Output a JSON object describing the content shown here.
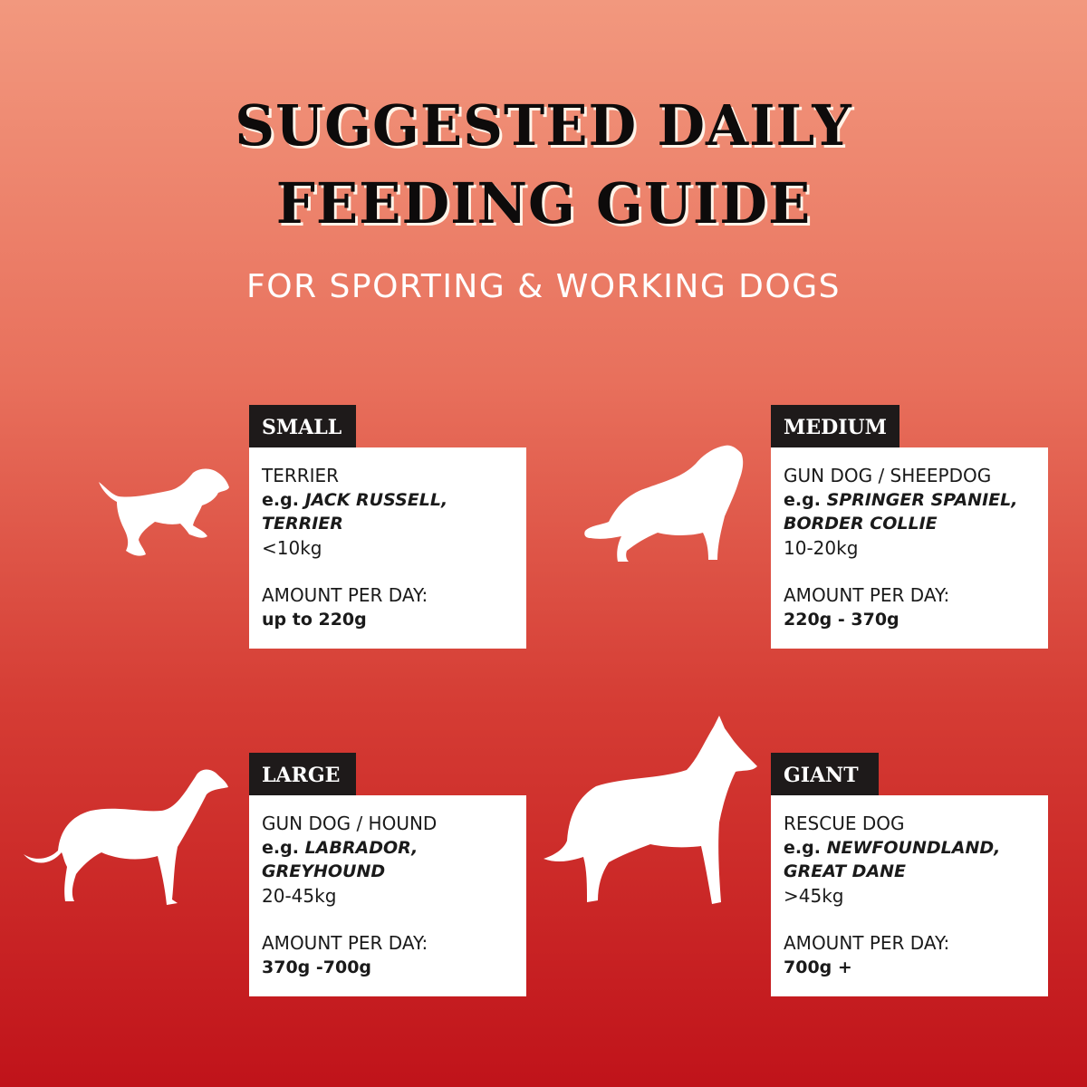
{
  "title_line1": "SUGGESTED DAILY",
  "title_line2": "FEEDING GUIDE",
  "subtitle": "FOR SPORTING & WORKING DOGS",
  "cards": [
    {
      "size": "SMALL",
      "type": "TERRIER",
      "eg_prefix": "e.g.",
      "examples": "JACK RUSSELL, TERRIER",
      "weight": "<10kg",
      "amount_label": "AMOUNT PER DAY:",
      "amount": "up to 220g",
      "icon": "small-running-dog-icon"
    },
    {
      "size": "MEDIUM",
      "type": "GUN DOG / SHEEPDOG",
      "eg_prefix": "e.g.",
      "examples": "SPRINGER SPANIEL, BORDER COLLIE",
      "weight": "10-20kg",
      "amount_label": "AMOUNT PER DAY:",
      "amount": "220g - 370g",
      "icon": "collie-dog-icon"
    },
    {
      "size": "LARGE",
      "type": "GUN DOG / HOUND",
      "eg_prefix": "e.g.",
      "examples": "LABRADOR, GREYHOUND",
      "weight": "20-45kg",
      "amount_label": "AMOUNT PER DAY:",
      "amount": "370g -700g",
      "icon": "greyhound-dog-icon"
    },
    {
      "size": "GIANT",
      "type": "RESCUE DOG",
      "eg_prefix": "e.g.",
      "examples": "NEWFOUNDLAND, GREAT DANE",
      "weight": ">45kg",
      "amount_label": "AMOUNT PER DAY:",
      "amount": "700g +",
      "icon": "great-dane-dog-icon"
    }
  ]
}
